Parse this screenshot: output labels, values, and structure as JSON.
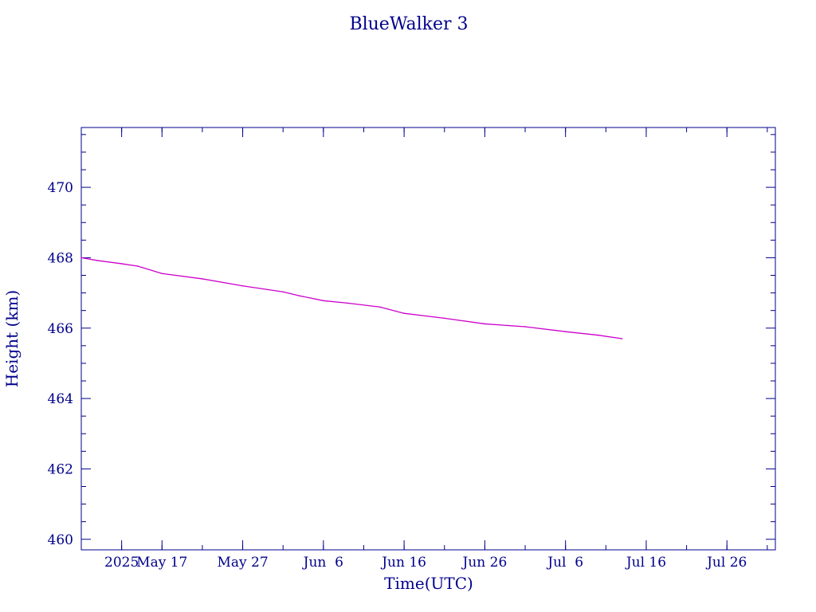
{
  "chart_data": {
    "type": "line",
    "title": "BlueWalker 3",
    "xlabel": "Time(UTC)",
    "ylabel": "Height (km)",
    "ylim": [
      459.7,
      471.7
    ],
    "xlim": [
      "2025-05-07",
      "2025-08-01"
    ],
    "x_ticks": [
      {
        "date": "2025-05-12",
        "label": "2025"
      },
      {
        "date": "2025-05-17",
        "label": "May 17"
      },
      {
        "date": "2025-05-27",
        "label": "May 27"
      },
      {
        "date": "2025-06-06",
        "label": "Jun  6"
      },
      {
        "date": "2025-06-16",
        "label": "Jun 16"
      },
      {
        "date": "2025-06-26",
        "label": "Jun 26"
      },
      {
        "date": "2025-07-06",
        "label": "Jul  6"
      },
      {
        "date": "2025-07-16",
        "label": "Jul 16"
      },
      {
        "date": "2025-07-26",
        "label": "Jul 26"
      }
    ],
    "y_ticks": [
      460,
      462,
      464,
      466,
      468,
      470
    ],
    "grid": false,
    "series": [
      {
        "color": "#cc00cc",
        "points": [
          {
            "x": "2025-05-07",
            "y": 468.0
          },
          {
            "x": "2025-05-09",
            "y": 467.92
          },
          {
            "x": "2025-05-12",
            "y": 467.83
          },
          {
            "x": "2025-05-14",
            "y": 467.76
          },
          {
            "x": "2025-05-17",
            "y": 467.55
          },
          {
            "x": "2025-05-22",
            "y": 467.4
          },
          {
            "x": "2025-05-27",
            "y": 467.2
          },
          {
            "x": "2025-06-01",
            "y": 467.03
          },
          {
            "x": "2025-06-03",
            "y": 466.92
          },
          {
            "x": "2025-06-06",
            "y": 466.78
          },
          {
            "x": "2025-06-09",
            "y": 466.71
          },
          {
            "x": "2025-06-13",
            "y": 466.6
          },
          {
            "x": "2025-06-16",
            "y": 466.42
          },
          {
            "x": "2025-06-21",
            "y": 466.28
          },
          {
            "x": "2025-06-26",
            "y": 466.12
          },
          {
            "x": "2025-07-01",
            "y": 466.04
          },
          {
            "x": "2025-07-06",
            "y": 465.9
          },
          {
            "x": "2025-07-10",
            "y": 465.8
          },
          {
            "x": "2025-07-13",
            "y": 465.7
          }
        ]
      }
    ]
  }
}
